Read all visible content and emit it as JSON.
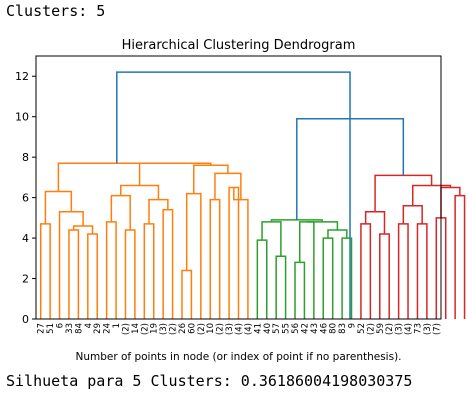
{
  "header": {
    "text": "Clusters: 5"
  },
  "footer": {
    "text": "Silhueta para 5 Clusters: 0.36186004198030375"
  },
  "chart_data": {
    "type": "dendrogram",
    "title": "Hierarchical Clustering Dendrogram",
    "xlabel": "Number of points in node (or index of point if no parenthesis).",
    "ylabel": "",
    "ylim": [
      0,
      13
    ],
    "yticks": [
      0,
      2,
      4,
      6,
      8,
      10,
      12
    ],
    "grid": false,
    "leaf_labels": [
      "27",
      "51",
      "6",
      "33",
      "84",
      "4",
      "29",
      "24",
      "1",
      "(2)",
      "14",
      "(2)",
      "19",
      "(3)",
      "(2)",
      "26",
      "60",
      "(2)",
      "10",
      "(2)",
      "(3)",
      "(4)",
      "(4)",
      "41",
      "40",
      "57",
      "55",
      "56",
      "42",
      "43",
      "46",
      "80",
      "83",
      "9",
      "52",
      "(2)",
      "59",
      "(2)",
      "(3)",
      "(4)",
      "73",
      "(3)",
      "(7)"
    ],
    "colors": {
      "orange": "#ff7f0e",
      "green": "#2ca02c",
      "red": "#d62728",
      "blue": "#1f77b4"
    },
    "links": [
      {
        "l": 0,
        "r": 1,
        "h": 4.7,
        "c": "orange"
      },
      {
        "l": 3,
        "r": 4,
        "h": 4.4,
        "c": "orange"
      },
      {
        "l": 5,
        "r": 6,
        "h": 4.2,
        "c": "orange"
      },
      {
        "l": 3.5,
        "r": 5.5,
        "h": 4.6,
        "c": "orange"
      },
      {
        "l": 2,
        "r": 4.5,
        "h": 5.3,
        "c": "orange"
      },
      {
        "l": 0.5,
        "r": 3.25,
        "h": 6.3,
        "c": "orange"
      },
      {
        "l": 7,
        "r": 8,
        "h": 4.8,
        "c": "orange"
      },
      {
        "l": 9,
        "r": 10,
        "h": 4.4,
        "c": "orange"
      },
      {
        "l": 7.5,
        "r": 9.5,
        "h": 6.1,
        "c": "orange"
      },
      {
        "l": 11,
        "r": 12,
        "h": 4.7,
        "c": "orange"
      },
      {
        "l": 13,
        "r": 14,
        "h": 5.4,
        "c": "orange"
      },
      {
        "l": 11.5,
        "r": 13.5,
        "h": 5.9,
        "c": "orange"
      },
      {
        "l": 8.5,
        "r": 12.5,
        "h": 6.6,
        "c": "orange"
      },
      {
        "l": 15,
        "r": 16,
        "h": 2.4,
        "c": "orange"
      },
      {
        "l": 15.5,
        "r": 17,
        "h": 6.2,
        "c": "orange"
      },
      {
        "l": 18,
        "r": 19,
        "h": 5.9,
        "c": "orange"
      },
      {
        "l": 20,
        "r": 21,
        "h": 6.5,
        "c": "orange"
      },
      {
        "l": 20.5,
        "r": 22,
        "h": 5.9,
        "c": "orange"
      },
      {
        "l": 18.5,
        "r": 21.25,
        "h": 7.2,
        "c": "orange"
      },
      {
        "l": 16.25,
        "r": 19.875,
        "h": 7.6,
        "c": "orange"
      },
      {
        "l": 10.5,
        "r": 18.06,
        "h": 7.7,
        "c": "orange"
      },
      {
        "l": 1.875,
        "r": 14.28,
        "h": 7.7,
        "c": "orange"
      },
      {
        "l": 23,
        "r": 24,
        "h": 3.9,
        "c": "green"
      },
      {
        "l": 25,
        "r": 26,
        "h": 3.1,
        "c": "green"
      },
      {
        "l": 23.5,
        "r": 25.5,
        "h": 4.8,
        "c": "green"
      },
      {
        "l": 27,
        "r": 28,
        "h": 2.8,
        "c": "green"
      },
      {
        "l": 27.5,
        "r": 29,
        "h": 4.8,
        "c": "green"
      },
      {
        "l": 30,
        "r": 31,
        "h": 4.0,
        "c": "green"
      },
      {
        "l": 32,
        "r": 33,
        "h": 4.0,
        "c": "green"
      },
      {
        "l": 30.5,
        "r": 32.5,
        "h": 4.4,
        "c": "green"
      },
      {
        "l": 28.25,
        "r": 31.5,
        "h": 4.8,
        "c": "green"
      },
      {
        "l": 24.5,
        "r": 29.875,
        "h": 4.9,
        "c": "green"
      },
      {
        "l": 34,
        "r": 35,
        "h": 4.7,
        "c": "red"
      },
      {
        "l": 36,
        "r": 37,
        "h": 4.2,
        "c": "red"
      },
      {
        "l": 34.5,
        "r": 36.5,
        "h": 5.3,
        "c": "red"
      },
      {
        "l": 38,
        "r": 39,
        "h": 4.7,
        "c": "red"
      },
      {
        "l": 40,
        "r": 41,
        "h": 4.7,
        "c": "red"
      },
      {
        "l": 38.5,
        "r": 40.5,
        "h": 5.6,
        "c": "red"
      },
      {
        "l": 42,
        "r": 43,
        "h": 5.0,
        "c": "red"
      },
      {
        "l": 44,
        "r": 45,
        "h": 6.1,
        "c": "red"
      },
      {
        "l": 42.5,
        "r": 44.5,
        "h": 6.5,
        "c": "red"
      },
      {
        "l": 39.5,
        "r": 43.5,
        "h": 6.6,
        "c": "red"
      },
      {
        "l": 35.5,
        "r": 41.5,
        "h": 7.1,
        "c": "red"
      },
      {
        "l": 27.19,
        "r": 38.5,
        "h": 9.9,
        "c": "blue"
      },
      {
        "l": 8.08,
        "r": 32.84,
        "h": 12.2,
        "c": "blue"
      }
    ]
  }
}
